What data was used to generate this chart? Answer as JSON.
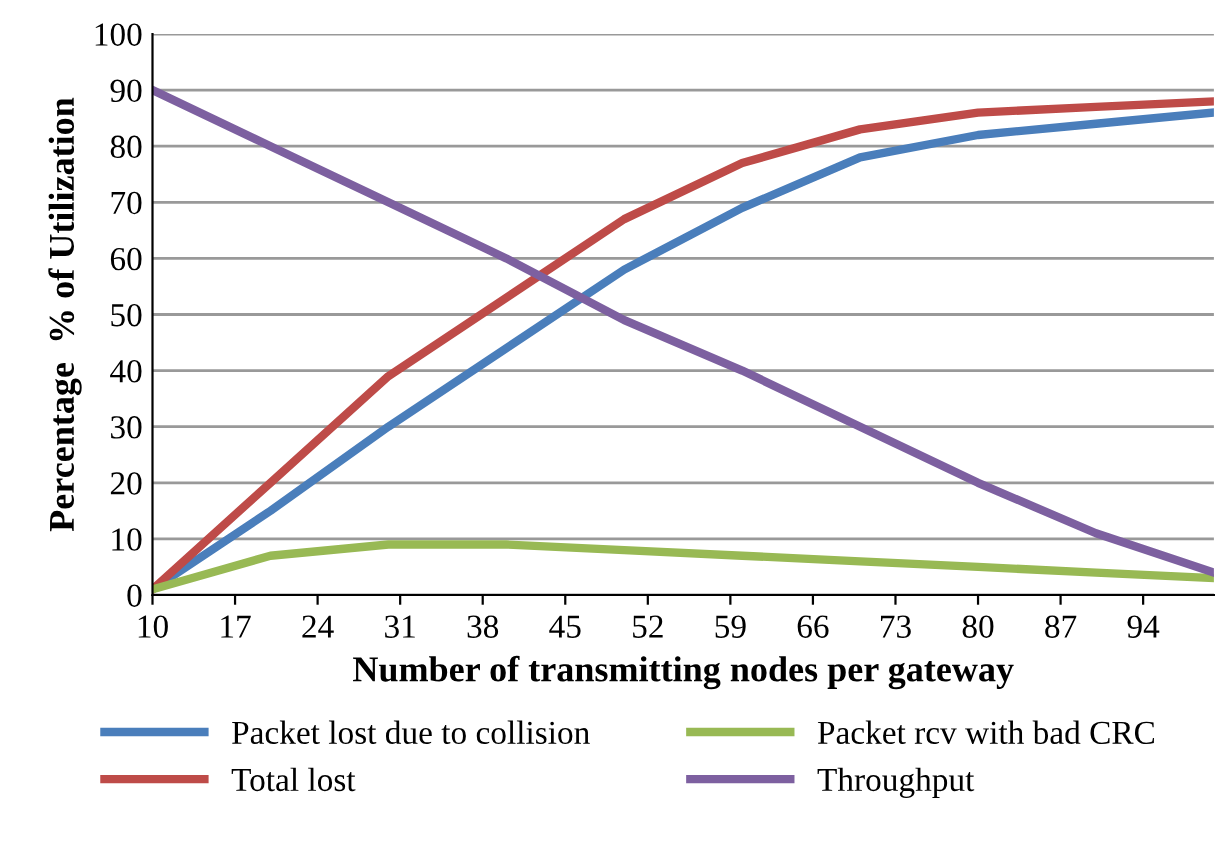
{
  "chart_data": {
    "type": "line",
    "xlabel": "Number of transmitting nodes per gateway",
    "ylabel": "Percentage  % of Utilization",
    "x": [
      10,
      20,
      30,
      40,
      50,
      60,
      70,
      80,
      90,
      100
    ],
    "series": [
      {
        "name": "Packet lost due to collision",
        "color": "#4a7ebb",
        "values": [
          1,
          15,
          30,
          44,
          58,
          69,
          78,
          82,
          84,
          86
        ]
      },
      {
        "name": "Total lost",
        "color": "#be4b48",
        "values": [
          1,
          20,
          39,
          53,
          67,
          77,
          83,
          86,
          87,
          88
        ]
      },
      {
        "name": "Packet rcv with bad CRC",
        "color": "#98b954",
        "values": [
          1,
          7,
          9,
          9,
          8,
          7,
          6,
          5,
          4,
          3
        ]
      },
      {
        "name": "Throughput",
        "color": "#7d60a0",
        "values": [
          90,
          80,
          70,
          60,
          49,
          40,
          30,
          20,
          11,
          4
        ]
      }
    ],
    "xlim": [
      10,
      100
    ],
    "xticks": [
      10,
      17,
      24,
      31,
      38,
      45,
      52,
      59,
      66,
      73,
      80,
      87,
      94
    ],
    "ylim": [
      0,
      100
    ],
    "yticks": [
      0,
      10,
      20,
      30,
      40,
      50,
      60,
      70,
      80,
      90,
      100
    ],
    "grid": "y",
    "legend": "bottom",
    "marker": "none",
    "line_style": "solid"
  }
}
